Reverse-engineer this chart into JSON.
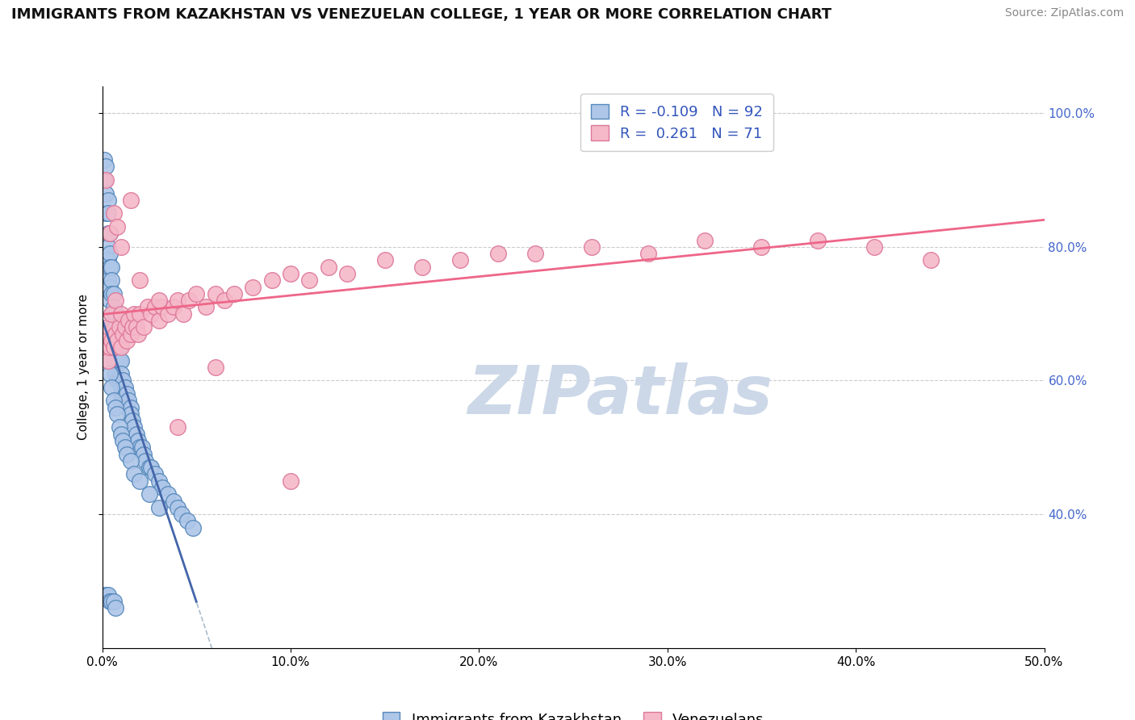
{
  "title": "IMMIGRANTS FROM KAZAKHSTAN VS VENEZUELAN COLLEGE, 1 YEAR OR MORE CORRELATION CHART",
  "source": "Source: ZipAtlas.com",
  "xlabel": "Immigrants from Kazakhstan",
  "ylabel": "College, 1 year or more",
  "xlim": [
    0.0,
    0.5
  ],
  "ylim": [
    0.2,
    1.04
  ],
  "xtick_vals": [
    0.0,
    0.1,
    0.2,
    0.3,
    0.4,
    0.5
  ],
  "xtick_labels": [
    "0.0%",
    "10.0%",
    "20.0%",
    "30.0%",
    "40.0%",
    "50.0%"
  ],
  "ytick_vals": [
    0.4,
    0.6,
    0.8,
    1.0
  ],
  "ytick_labels": [
    "40.0%",
    "60.0%",
    "80.0%",
    "100.0%"
  ],
  "blue_color": "#aec6e8",
  "pink_color": "#f5b8c8",
  "blue_edge": "#5588bb",
  "pink_edge": "#dd7799",
  "trend_blue_color": "#4466aa",
  "trend_blue_dash_color": "#aabbcc",
  "trend_pink_color": "#ee6688",
  "watermark": "ZIPatlas",
  "watermark_color": "#ccd8e8",
  "background_color": "#ffffff",
  "grid_color": "#cccccc",
  "title_fontsize": 13,
  "axis_label_fontsize": 11,
  "tick_fontsize": 11,
  "legend_fontsize": 13,
  "right_tick_color": "#4466cc",
  "blue_x": [
    0.001,
    0.001,
    0.002,
    0.002,
    0.002,
    0.003,
    0.003,
    0.003,
    0.003,
    0.003,
    0.003,
    0.004,
    0.004,
    0.004,
    0.004,
    0.004,
    0.005,
    0.005,
    0.005,
    0.005,
    0.005,
    0.005,
    0.006,
    0.006,
    0.006,
    0.006,
    0.007,
    0.007,
    0.007,
    0.007,
    0.007,
    0.008,
    0.008,
    0.008,
    0.008,
    0.009,
    0.009,
    0.009,
    0.01,
    0.01,
    0.01,
    0.01,
    0.011,
    0.011,
    0.012,
    0.012,
    0.013,
    0.013,
    0.014,
    0.015,
    0.015,
    0.016,
    0.017,
    0.018,
    0.019,
    0.02,
    0.021,
    0.022,
    0.023,
    0.025,
    0.026,
    0.028,
    0.03,
    0.032,
    0.035,
    0.038,
    0.04,
    0.042,
    0.045,
    0.048,
    0.003,
    0.004,
    0.005,
    0.006,
    0.007,
    0.008,
    0.009,
    0.01,
    0.011,
    0.012,
    0.013,
    0.015,
    0.017,
    0.02,
    0.025,
    0.03,
    0.002,
    0.003,
    0.004,
    0.005,
    0.006,
    0.007
  ],
  "blue_y": [
    0.93,
    0.9,
    0.92,
    0.88,
    0.85,
    0.87,
    0.85,
    0.82,
    0.8,
    0.78,
    0.75,
    0.82,
    0.79,
    0.77,
    0.74,
    0.72,
    0.77,
    0.75,
    0.73,
    0.7,
    0.68,
    0.65,
    0.73,
    0.71,
    0.68,
    0.65,
    0.7,
    0.68,
    0.66,
    0.63,
    0.61,
    0.67,
    0.65,
    0.63,
    0.6,
    0.65,
    0.63,
    0.6,
    0.63,
    0.61,
    0.59,
    0.57,
    0.6,
    0.58,
    0.59,
    0.57,
    0.58,
    0.56,
    0.57,
    0.56,
    0.55,
    0.54,
    0.53,
    0.52,
    0.51,
    0.5,
    0.5,
    0.49,
    0.48,
    0.47,
    0.47,
    0.46,
    0.45,
    0.44,
    0.43,
    0.42,
    0.41,
    0.4,
    0.39,
    0.38,
    0.63,
    0.61,
    0.59,
    0.57,
    0.56,
    0.55,
    0.53,
    0.52,
    0.51,
    0.5,
    0.49,
    0.48,
    0.46,
    0.45,
    0.43,
    0.41,
    0.28,
    0.28,
    0.27,
    0.27,
    0.27,
    0.26
  ],
  "pink_x": [
    0.001,
    0.002,
    0.003,
    0.003,
    0.004,
    0.005,
    0.005,
    0.006,
    0.007,
    0.007,
    0.008,
    0.009,
    0.01,
    0.01,
    0.011,
    0.012,
    0.013,
    0.014,
    0.015,
    0.016,
    0.017,
    0.018,
    0.019,
    0.02,
    0.022,
    0.024,
    0.026,
    0.028,
    0.03,
    0.032,
    0.035,
    0.038,
    0.04,
    0.043,
    0.046,
    0.05,
    0.055,
    0.06,
    0.065,
    0.07,
    0.08,
    0.09,
    0.1,
    0.11,
    0.12,
    0.13,
    0.15,
    0.17,
    0.19,
    0.21,
    0.23,
    0.26,
    0.29,
    0.32,
    0.35,
    0.38,
    0.41,
    0.44,
    0.002,
    0.004,
    0.006,
    0.008,
    0.01,
    0.015,
    0.02,
    0.03,
    0.04,
    0.06,
    0.1
  ],
  "pink_y": [
    0.65,
    0.67,
    0.63,
    0.68,
    0.65,
    0.66,
    0.7,
    0.65,
    0.67,
    0.72,
    0.66,
    0.68,
    0.65,
    0.7,
    0.67,
    0.68,
    0.66,
    0.69,
    0.67,
    0.68,
    0.7,
    0.68,
    0.67,
    0.7,
    0.68,
    0.71,
    0.7,
    0.71,
    0.69,
    0.71,
    0.7,
    0.71,
    0.72,
    0.7,
    0.72,
    0.73,
    0.71,
    0.73,
    0.72,
    0.73,
    0.74,
    0.75,
    0.76,
    0.75,
    0.77,
    0.76,
    0.78,
    0.77,
    0.78,
    0.79,
    0.79,
    0.8,
    0.79,
    0.81,
    0.8,
    0.81,
    0.8,
    0.78,
    0.9,
    0.82,
    0.85,
    0.83,
    0.8,
    0.87,
    0.75,
    0.72,
    0.53,
    0.62,
    0.45
  ]
}
